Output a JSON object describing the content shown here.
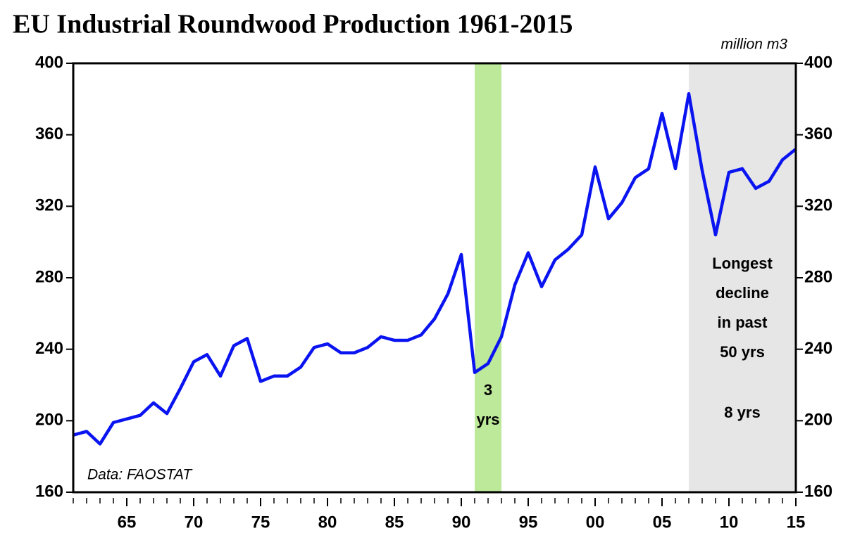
{
  "chart_data": {
    "type": "line",
    "title": "EU Industrial Roundwood Production 1961-2015",
    "units": "million m3",
    "source": "Data: FAOSTAT",
    "x": [
      1961,
      1962,
      1963,
      1964,
      1965,
      1966,
      1967,
      1968,
      1969,
      1970,
      1971,
      1972,
      1973,
      1974,
      1975,
      1976,
      1977,
      1978,
      1979,
      1980,
      1981,
      1982,
      1983,
      1984,
      1985,
      1986,
      1987,
      1988,
      1989,
      1990,
      1991,
      1992,
      1993,
      1994,
      1995,
      1996,
      1997,
      1998,
      1999,
      2000,
      2001,
      2002,
      2003,
      2004,
      2005,
      2006,
      2007,
      2008,
      2009,
      2010,
      2011,
      2012,
      2013,
      2014,
      2015
    ],
    "series": [
      {
        "name": "EU Industrial Roundwood Production",
        "color": "#0a14f0",
        "values": [
          192,
          194,
          187,
          199,
          201,
          203,
          210,
          204,
          218,
          233,
          237,
          225,
          242,
          246,
          222,
          225,
          225,
          230,
          241,
          243,
          238,
          238,
          241,
          247,
          245,
          245,
          248,
          257,
          271,
          293,
          227,
          232,
          247,
          276,
          294,
          275,
          290,
          296,
          304,
          342,
          313,
          322,
          336,
          341,
          372,
          341,
          383,
          340,
          304,
          339,
          341,
          330,
          334,
          346,
          352
        ]
      }
    ],
    "xlim": [
      1961,
      2015
    ],
    "xticks": [
      {
        "value": 1965,
        "label": "65"
      },
      {
        "value": 1970,
        "label": "70"
      },
      {
        "value": 1975,
        "label": "75"
      },
      {
        "value": 1980,
        "label": "80"
      },
      {
        "value": 1985,
        "label": "85"
      },
      {
        "value": 1990,
        "label": "90"
      },
      {
        "value": 1995,
        "label": "95"
      },
      {
        "value": 2000,
        "label": "00"
      },
      {
        "value": 2005,
        "label": "05"
      },
      {
        "value": 2010,
        "label": "10"
      },
      {
        "value": 2015,
        "label": "15"
      }
    ],
    "ylim": [
      160,
      400
    ],
    "yticks": [
      160,
      200,
      240,
      280,
      320,
      360,
      400
    ],
    "y2lim": [
      160,
      400
    ],
    "y2ticks": [
      160,
      200,
      240,
      280,
      320,
      360,
      400
    ],
    "grid": false,
    "shaded": [
      {
        "start": 1991,
        "end": 1993,
        "color": "#bde99a",
        "label_lines": [
          "3",
          "yrs"
        ]
      },
      {
        "start": 2007,
        "end": 2015,
        "color": "#e6e6e6",
        "label_lines": [
          "Longest",
          "decline",
          "in past",
          "50 yrs"
        ],
        "sublabel": "8 yrs"
      }
    ]
  }
}
